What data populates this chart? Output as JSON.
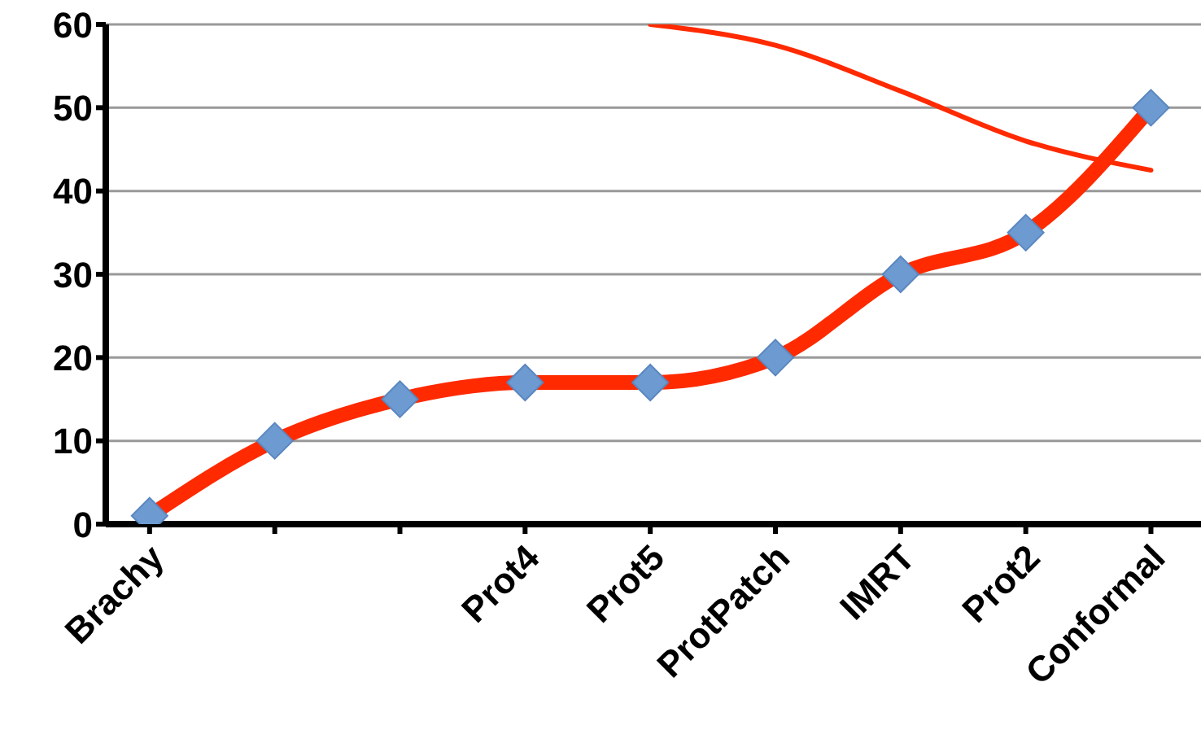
{
  "chart_data": {
    "type": "line",
    "categories": [
      "Brachy",
      null,
      null,
      "Prot4",
      "Prot5",
      "ProtPatch",
      "IMRT",
      "Prot2",
      "Conformal"
    ],
    "series": [
      {
        "color": "#ff2a00",
        "values": [
          1,
          10,
          15,
          17,
          17,
          20,
          30,
          35,
          50
        ],
        "marker": "diamond"
      },
      {
        "color": "#ff2a00",
        "values": [
          null,
          null,
          null,
          null,
          60,
          57.5,
          52,
          46,
          42.5
        ],
        "marker": "none"
      }
    ],
    "ylim": [
      0,
      60
    ],
    "yticks": [
      0,
      10,
      20,
      30,
      40,
      50,
      60
    ],
    "grid": "y"
  }
}
